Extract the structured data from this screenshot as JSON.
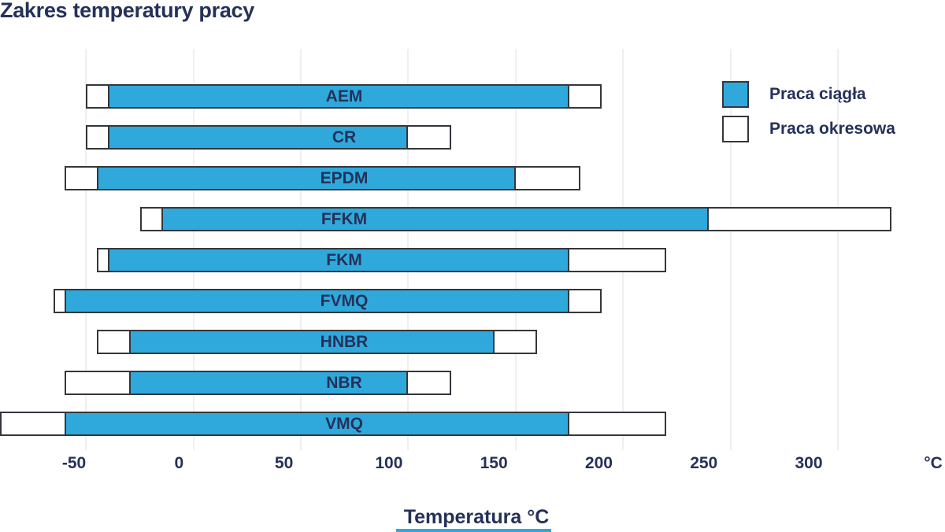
{
  "title": "Zakres temperatury pracy",
  "legend": {
    "items": [
      {
        "label": "Praca ciągła",
        "swatch": "continuous"
      },
      {
        "label": "Praca okresowa",
        "swatch": "periodic"
      }
    ]
  },
  "x_axis": {
    "tick_values": [
      -50,
      0,
      50,
      100,
      150,
      200,
      250,
      300
    ],
    "tick_labels": [
      "-50",
      "0",
      "50",
      "100",
      "150",
      "200",
      "250",
      "300"
    ],
    "unit_suffix": "°C",
    "title": "Temperatura °C"
  },
  "colors": {
    "bar_fill_continuous": "#2fa9dc",
    "bar_fill_periodic": "#ffffff",
    "bar_border": "#33373c",
    "text": "#253159",
    "gridline": "#efefef",
    "background": "#ffffff",
    "bottom_accent": "#2fa9dc"
  },
  "chart_data": {
    "type": "bar",
    "orientation": "horizontal-range",
    "title": "Zakres temperatury pracy",
    "xlabel": "Temperatura °C",
    "xlim": [
      -90,
      350
    ],
    "grid": "vertical gridlines every 50 °C, very faint",
    "legend_position": "top-right",
    "categories": [
      "AEM",
      "CR",
      "EPDM",
      "FFKM",
      "FKM",
      "FVMQ",
      "HNBR",
      "NBR",
      "VMQ"
    ],
    "series": [
      {
        "name": "Praca ciągła",
        "style": "blue filled bar with dark outline",
        "ranges_c": [
          [
            -40,
            175
          ],
          [
            -40,
            100
          ],
          [
            -45,
            150
          ],
          [
            -15,
            240
          ],
          [
            -40,
            175
          ],
          [
            -60,
            175
          ],
          [
            -30,
            140
          ],
          [
            -30,
            100
          ],
          [
            -60,
            175
          ]
        ]
      },
      {
        "name": "Praca okresowa",
        "style": "white bar with dark outline (extends beyond continuous range on both ends)",
        "ranges_c": [
          [
            -50,
            190
          ],
          [
            -50,
            120
          ],
          [
            -60,
            180
          ],
          [
            -25,
            325
          ],
          [
            -45,
            220
          ],
          [
            -65,
            190
          ],
          [
            -45,
            160
          ],
          [
            -60,
            120
          ],
          [
            -90,
            220
          ]
        ]
      }
    ]
  }
}
